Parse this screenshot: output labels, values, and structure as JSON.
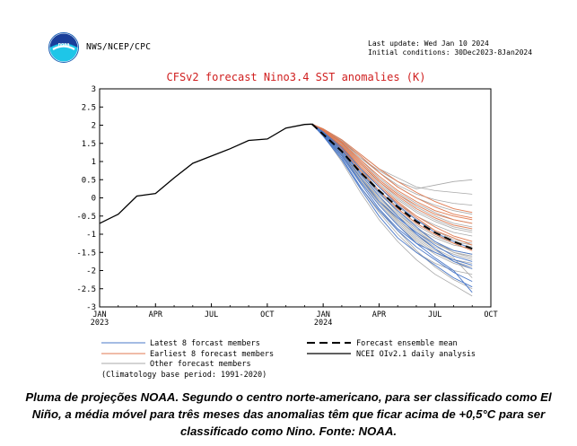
{
  "header": {
    "agency": "NWS/NCEP/CPC",
    "logo_text": "noaa",
    "last_update": "Last update: Wed Jan 10 2024",
    "initial_conditions": "Initial conditions: 30Dec2023-8Jan2024"
  },
  "caption": "Pluma de projeções NOAA. Segundo o centro norte-americano, para ser classificado como El Niño, a média móvel para três meses das anomalias têm que ficar acima de +0,5°C para ser classificado como Nino. Fonte: NOAA.",
  "colors": {
    "title": "#d02020",
    "latest": "#4a78c8",
    "earliest": "#e07a50",
    "other": "#a8a8a8",
    "ensemble_mean": "#000000",
    "analysis": "#000000"
  },
  "chart_data": {
    "type": "line",
    "title": "CFSv2 forecast Nino3.4 SST anomalies (K)",
    "ylim": [
      -3,
      3
    ],
    "yticks": [
      "3",
      "2.5",
      "2",
      "1.5",
      "1",
      "0.5",
      "0",
      "-0.5",
      "-1",
      "-1.5",
      "-2",
      "-2.5",
      "-3"
    ],
    "xlim": [
      0,
      21
    ],
    "xticks": [
      {
        "x": 0,
        "label": "JAN",
        "sub": "2023"
      },
      {
        "x": 3,
        "label": "APR",
        "sub": ""
      },
      {
        "x": 6,
        "label": "JUL",
        "sub": ""
      },
      {
        "x": 9,
        "label": "OCT",
        "sub": ""
      },
      {
        "x": 12,
        "label": "JAN",
        "sub": "2024"
      },
      {
        "x": 15,
        "label": "APR",
        "sub": ""
      },
      {
        "x": 18,
        "label": "JUL",
        "sub": ""
      },
      {
        "x": 21,
        "label": "OCT",
        "sub": ""
      }
    ],
    "legend": {
      "placement": "below",
      "latest": "Latest 8 forcast members",
      "earliest": "Earliest 8 forecast members",
      "other": "Other forecast members",
      "ensemble_mean": "Forecast ensemble mean",
      "analysis": "NCEI OIv2.1 daily analysis",
      "climatology": "(Climatology base period: 1991-2020)"
    },
    "analysis": {
      "x": [
        0,
        1,
        2,
        3,
        4,
        5,
        6,
        7,
        8,
        9,
        10,
        11,
        11.4
      ],
      "y": [
        -0.7,
        -0.45,
        0.05,
        0.12,
        0.55,
        0.95,
        1.15,
        1.35,
        1.58,
        1.62,
        1.92,
        2.02,
        2.03
      ]
    },
    "ensemble_mean": {
      "x": [
        11.4,
        12,
        13,
        14,
        15,
        16,
        17,
        18,
        19,
        20
      ],
      "y": [
        2.03,
        1.75,
        1.28,
        0.7,
        0.2,
        -0.25,
        -0.65,
        -0.95,
        -1.2,
        -1.4
      ]
    },
    "member_x": [
      11.4,
      12,
      13,
      14,
      15,
      16,
      17,
      18,
      19,
      20
    ],
    "latest": [
      [
        2.03,
        1.72,
        1.1,
        0.3,
        -0.35,
        -0.9,
        -1.35,
        -1.7,
        -2.05,
        -2.3
      ],
      [
        2.03,
        1.8,
        1.3,
        0.65,
        0.05,
        -0.5,
        -1.0,
        -1.4,
        -1.75,
        -1.95
      ],
      [
        2.03,
        1.76,
        1.2,
        0.45,
        -0.2,
        -0.75,
        -1.25,
        -1.65,
        -2.0,
        -2.6
      ],
      [
        2.03,
        1.82,
        1.38,
        0.8,
        0.3,
        -0.2,
        -0.6,
        -0.95,
        -1.2,
        -1.4
      ],
      [
        2.03,
        1.7,
        1.05,
        0.25,
        -0.5,
        -1.1,
        -1.5,
        -1.85,
        -2.2,
        -2.45
      ],
      [
        2.03,
        1.78,
        1.25,
        0.55,
        -0.1,
        -0.55,
        -0.95,
        -1.3,
        -1.6,
        -1.75
      ],
      [
        2.03,
        1.74,
        1.15,
        0.4,
        -0.3,
        -0.85,
        -1.25,
        -1.5,
        -1.7,
        -1.85
      ],
      [
        2.03,
        1.8,
        1.32,
        0.7,
        0.15,
        -0.35,
        -0.8,
        -1.2,
        -1.45,
        -1.55
      ]
    ],
    "earliest": [
      [
        2.03,
        1.88,
        1.55,
        1.15,
        0.7,
        0.3,
        0.0,
        -0.25,
        -0.45,
        -0.55
      ],
      [
        2.03,
        1.85,
        1.45,
        0.95,
        0.45,
        0.05,
        -0.3,
        -0.55,
        -0.75,
        -0.85
      ],
      [
        2.03,
        1.9,
        1.6,
        1.2,
        0.8,
        0.45,
        0.15,
        -0.1,
        -0.3,
        -0.4
      ],
      [
        2.03,
        1.84,
        1.42,
        0.9,
        0.35,
        -0.1,
        -0.5,
        -0.8,
        -1.05,
        -1.2
      ],
      [
        2.03,
        1.86,
        1.5,
        1.0,
        0.5,
        0.1,
        -0.2,
        -0.45,
        -0.6,
        -0.7
      ],
      [
        2.03,
        1.82,
        1.35,
        0.75,
        0.2,
        -0.3,
        -0.7,
        -1.0,
        -1.25,
        -1.45
      ],
      [
        2.03,
        1.87,
        1.52,
        1.05,
        0.6,
        0.2,
        -0.1,
        -0.35,
        -0.5,
        -0.6
      ],
      [
        2.03,
        1.83,
        1.4,
        0.85,
        0.3,
        -0.15,
        -0.55,
        -0.9,
        -1.1,
        -1.3
      ]
    ],
    "other": [
      [
        2.03,
        1.85,
        1.4,
        0.8,
        0.2,
        -0.3,
        -0.7,
        -1.0,
        -1.2,
        -1.3
      ],
      [
        2.03,
        1.78,
        1.2,
        0.5,
        -0.1,
        -0.6,
        -1.0,
        -1.35,
        -1.55,
        -1.7
      ],
      [
        2.03,
        1.88,
        1.55,
        1.1,
        0.7,
        0.35,
        0.1,
        -0.05,
        -0.15,
        -0.2
      ],
      [
        2.03,
        1.75,
        1.15,
        0.4,
        -0.3,
        -0.9,
        -1.45,
        -1.9,
        -2.25,
        -2.5
      ],
      [
        2.03,
        1.83,
        1.35,
        0.75,
        0.15,
        -0.4,
        -0.85,
        -1.2,
        -1.5,
        -1.65
      ],
      [
        2.03,
        1.9,
        1.6,
        1.2,
        0.8,
        0.55,
        0.3,
        0.2,
        0.15,
        0.1
      ],
      [
        2.03,
        1.8,
        1.25,
        0.6,
        0.0,
        -0.5,
        -0.9,
        -1.25,
        -1.5,
        -1.6
      ],
      [
        2.03,
        1.72,
        1.0,
        0.15,
        -0.6,
        -1.2,
        -1.7,
        -2.1,
        -2.4,
        -2.7
      ],
      [
        2.03,
        1.86,
        1.5,
        1.0,
        0.5,
        0.1,
        -0.25,
        -0.5,
        -0.7,
        -0.8
      ],
      [
        2.03,
        1.84,
        1.45,
        0.95,
        0.45,
        0.0,
        -0.35,
        -0.6,
        -0.8,
        -0.9
      ],
      [
        2.03,
        1.79,
        1.22,
        0.55,
        -0.05,
        -0.55,
        -0.95,
        -1.25,
        -1.45,
        -1.55
      ],
      [
        2.03,
        1.87,
        1.52,
        1.05,
        0.55,
        0.15,
        -0.15,
        -0.4,
        -0.6,
        -0.7
      ],
      [
        2.03,
        1.76,
        1.18,
        0.45,
        -0.2,
        -0.75,
        -1.2,
        -1.55,
        -1.8,
        -1.95
      ],
      [
        2.03,
        1.89,
        1.58,
        1.15,
        0.7,
        0.3,
        0.0,
        -0.2,
        -0.35,
        -0.45
      ],
      [
        2.03,
        1.81,
        1.3,
        0.65,
        0.05,
        -0.45,
        -0.85,
        -1.1,
        -1.3,
        -1.4
      ],
      [
        2.03,
        1.77,
        1.2,
        0.5,
        -0.15,
        -0.7,
        -1.15,
        -1.5,
        -1.75,
        -1.9
      ],
      [
        2.03,
        1.85,
        1.42,
        0.85,
        0.3,
        -0.15,
        -0.5,
        -0.75,
        -0.95,
        -1.05
      ],
      [
        2.03,
        1.74,
        1.1,
        0.3,
        -0.4,
        -1.0,
        -1.5,
        -1.8,
        -2.0,
        -2.1
      ],
      [
        2.03,
        1.88,
        1.55,
        1.1,
        0.75,
        0.45,
        0.25,
        0.35,
        0.45,
        0.5
      ],
      [
        2.03,
        1.82,
        1.32,
        0.7,
        0.1,
        -0.35,
        -0.75,
        -1.05,
        -1.25,
        -1.35
      ],
      [
        2.03,
        1.78,
        1.25,
        0.55,
        -0.1,
        -0.65,
        -1.1,
        -1.45,
        -1.7,
        -1.8
      ],
      [
        2.03,
        1.86,
        1.48,
        0.95,
        0.4,
        -0.05,
        -0.4,
        -0.65,
        -0.85,
        -0.95
      ],
      [
        2.03,
        1.8,
        1.28,
        0.6,
        -0.05,
        -0.6,
        -1.05,
        -1.4,
        -1.65,
        -2.2
      ],
      [
        2.03,
        1.83,
        1.38,
        0.8,
        0.2,
        -0.25,
        -0.6,
        -0.9,
        -1.15,
        -1.25
      ]
    ]
  }
}
